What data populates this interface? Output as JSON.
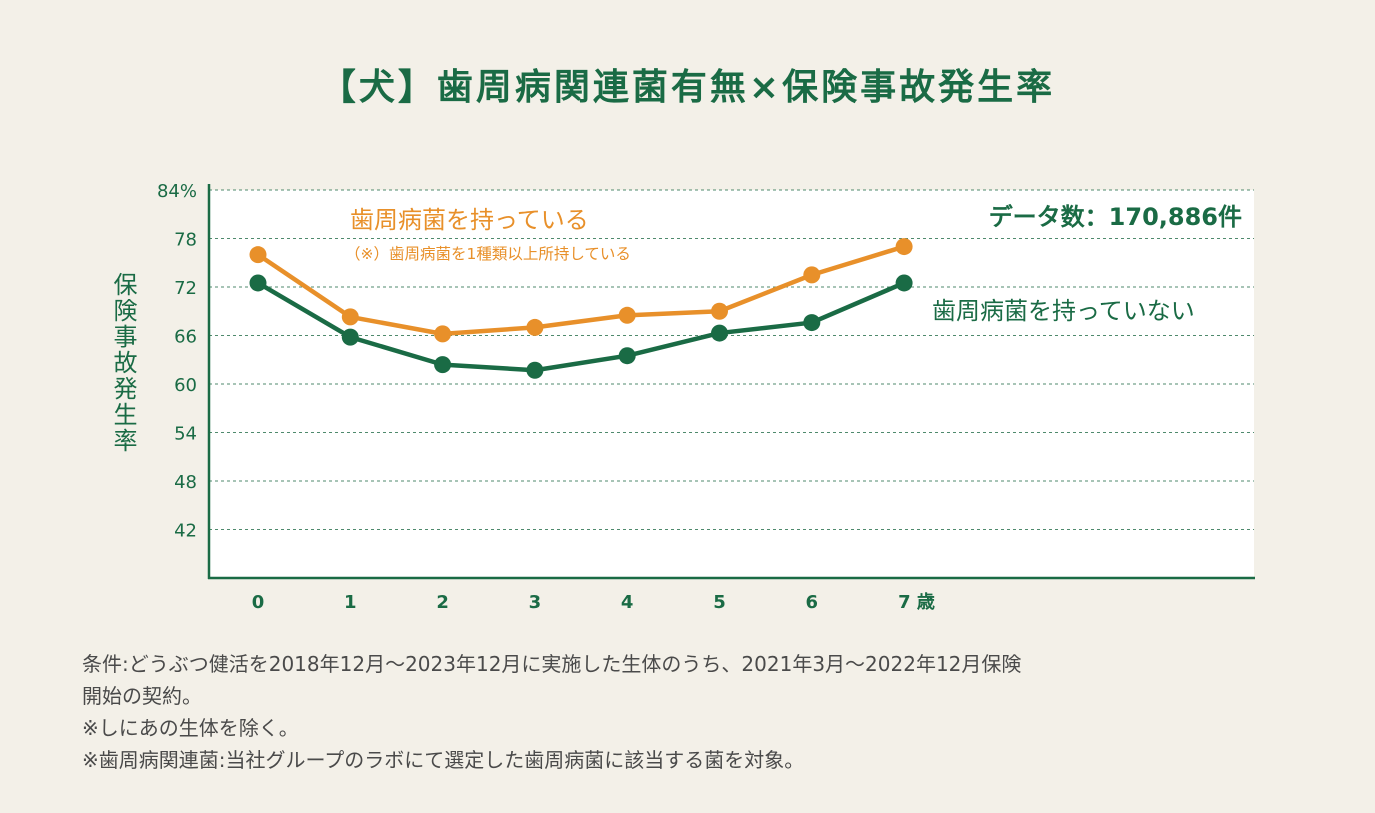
{
  "title": "【犬】歯周病関連菌有無×保険事故発生率",
  "chart_data": {
    "type": "line",
    "title": "【犬】歯周病関連菌有無×保険事故発生率",
    "ylabel": "保険事故発生率",
    "x": [
      0,
      1,
      2,
      3,
      4,
      5,
      6,
      7
    ],
    "xtick_labels": [
      "0",
      "1",
      "2",
      "3",
      "4",
      "5",
      "6",
      "7 歳"
    ],
    "yticks": [
      42,
      48,
      54,
      60,
      66,
      72,
      78,
      84
    ],
    "ytick_labels": [
      "42",
      "48",
      "54",
      "60",
      "66",
      "72",
      "78",
      "84%"
    ],
    "ylim": [
      36,
      84
    ],
    "grid": true,
    "data_count": "データ数：170,886件",
    "series": [
      {
        "name": "歯周病菌を持っている",
        "note": "（※）歯周病菌を1種類以上所持している",
        "color": "#e8902a",
        "values": [
          76.0,
          68.3,
          66.2,
          67.0,
          68.5,
          69.0,
          73.5,
          77.0
        ]
      },
      {
        "name": "歯周病菌を持っていない",
        "color": "#1a6b45",
        "values": [
          72.5,
          65.8,
          62.4,
          61.7,
          63.5,
          66.3,
          67.6,
          72.5
        ]
      }
    ]
  },
  "notes": [
    "条件:どうぶつ健活を2018年12月〜2023年12月に実施した生体のうち、2021年3月〜2022年12月保険",
    "開始の契約。",
    "※しにあの生体を除く。",
    "※歯周病関連菌:当社グループのラボにて選定した歯周病菌に該当する菌を対象。"
  ]
}
